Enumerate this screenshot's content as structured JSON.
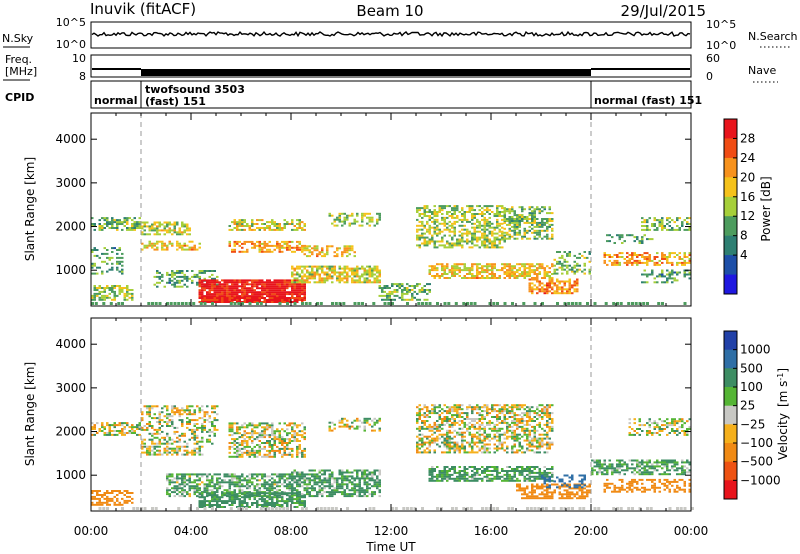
{
  "header": {
    "station": "Inuvik (fitACF)",
    "beam": "Beam 10",
    "date": "29/Jul/2015"
  },
  "strips": {
    "nsky_label": "N.Sky",
    "nsky_ticks": [
      "10^5",
      "10^0"
    ],
    "nsearch_label": "N.Search",
    "nsearch_ticks": [
      "10^5",
      "10^0"
    ],
    "freq_label_line1": "Freq.",
    "freq_label_line2": "[MHz]",
    "freq_ticks": [
      "10",
      "8"
    ],
    "nave_label": "Nave",
    "nave_ticks": [
      "60",
      "0"
    ],
    "cpid_label": "CPID",
    "cpid_segments": [
      {
        "line1": "normal",
        "line2": ""
      },
      {
        "line1": "twofsound 3503",
        "line2": "(fast) 151"
      },
      {
        "line1": "normal (fast) 151",
        "line2": ""
      }
    ]
  },
  "power_colorbar": {
    "label": "Power [dB]",
    "ticks": [
      "28",
      "24",
      "20",
      "16",
      "12",
      "8",
      "4"
    ],
    "colors": [
      "#e8141c",
      "#f04c14",
      "#f7921d",
      "#f5c21b",
      "#a6cf3a",
      "#4d9c5e",
      "#2e7f72",
      "#1d4fa8",
      "#1f18e0"
    ]
  },
  "velocity_colorbar": {
    "label_main": "Velocity",
    "label_unit": "[m s",
    "label_sup": "-1",
    "label_close": "]",
    "ticks": [
      "1000",
      "500",
      "100",
      "25",
      "−25",
      "−100",
      "−500",
      "−1000"
    ],
    "colors": [
      "#2241a8",
      "#2f6fa6",
      "#3d8d63",
      "#55b535",
      "#c8c8c4",
      "#f5b01c",
      "#f08a14",
      "#ee5212",
      "#e8141c"
    ]
  },
  "chart_data": [
    {
      "type": "heatmap",
      "title": "",
      "quantity": "Power",
      "xlabel": "",
      "ylabel": "Slant Range [km]",
      "x_ticks": [
        "00:00",
        "04:00",
        "08:00",
        "12:00",
        "16:00",
        "20:00",
        "00:00"
      ],
      "y_ticks": [
        "4000",
        "3000",
        "2000",
        "1000"
      ],
      "xlim_hours": [
        0,
        24
      ],
      "ylim_km": [
        180,
        4600
      ],
      "clim_db": [
        0,
        32
      ],
      "mode_boundaries_hours": [
        2.0,
        20.0
      ],
      "bands": [
        {
          "t0": 0.0,
          "t1": 2.0,
          "r0": 1900,
          "r1": 2200,
          "level_db": 14,
          "density": 0.55
        },
        {
          "t0": 0.0,
          "t1": 1.3,
          "r0": 900,
          "r1": 1500,
          "level_db": 12,
          "density": 0.35
        },
        {
          "t0": 0.0,
          "t1": 1.7,
          "r0": 300,
          "r1": 650,
          "level_db": 16,
          "density": 0.6
        },
        {
          "t0": 2.0,
          "t1": 4.0,
          "r0": 1800,
          "r1": 2100,
          "level_db": 17,
          "density": 0.6
        },
        {
          "t0": 2.0,
          "t1": 4.5,
          "r0": 1450,
          "r1": 1650,
          "level_db": 20,
          "density": 0.5
        },
        {
          "t0": 2.5,
          "t1": 5.0,
          "r0": 600,
          "r1": 1000,
          "level_db": 12,
          "density": 0.4
        },
        {
          "t0": 4.3,
          "t1": 8.5,
          "r0": 250,
          "r1": 750,
          "level_db": 30,
          "density": 0.92
        },
        {
          "t0": 5.5,
          "t1": 8.5,
          "r0": 1400,
          "r1": 1650,
          "level_db": 22,
          "density": 0.55
        },
        {
          "t0": 5.5,
          "t1": 8.5,
          "r0": 1900,
          "r1": 2150,
          "level_db": 18,
          "density": 0.55
        },
        {
          "t0": 8.0,
          "t1": 11.5,
          "r0": 700,
          "r1": 1100,
          "level_db": 18,
          "density": 0.7
        },
        {
          "t0": 8.5,
          "t1": 10.5,
          "r0": 1300,
          "r1": 1550,
          "level_db": 21,
          "density": 0.55
        },
        {
          "t0": 9.5,
          "t1": 11.5,
          "r0": 2000,
          "r1": 2300,
          "level_db": 15,
          "density": 0.4
        },
        {
          "t0": 11.5,
          "t1": 13.5,
          "r0": 300,
          "r1": 700,
          "level_db": 14,
          "density": 0.5
        },
        {
          "t0": 13.0,
          "t1": 16.5,
          "r0": 1500,
          "r1": 2450,
          "level_db": 16,
          "density": 0.55
        },
        {
          "t0": 13.5,
          "t1": 18.5,
          "r0": 800,
          "r1": 1150,
          "level_db": 20,
          "density": 0.65
        },
        {
          "t0": 16.5,
          "t1": 18.5,
          "r0": 1700,
          "r1": 2450,
          "level_db": 15,
          "density": 0.55
        },
        {
          "t0": 17.5,
          "t1": 19.5,
          "r0": 450,
          "r1": 800,
          "level_db": 24,
          "density": 0.6
        },
        {
          "t0": 18.5,
          "t1": 20.0,
          "r0": 900,
          "r1": 1400,
          "level_db": 14,
          "density": 0.45
        },
        {
          "t0": 20.5,
          "t1": 24.0,
          "r0": 1100,
          "r1": 1400,
          "level_db": 22,
          "density": 0.55
        },
        {
          "t0": 20.5,
          "t1": 22.5,
          "r0": 1600,
          "r1": 1800,
          "level_db": 12,
          "density": 0.4
        },
        {
          "t0": 22.0,
          "t1": 24.0,
          "r0": 1900,
          "r1": 2200,
          "level_db": 14,
          "density": 0.5
        },
        {
          "t0": 22.0,
          "t1": 24.0,
          "r0": 700,
          "r1": 1000,
          "level_db": 12,
          "density": 0.4
        }
      ]
    },
    {
      "type": "heatmap",
      "title": "",
      "quantity": "Velocity",
      "xlabel": "Time UT",
      "ylabel": "Slant Range [km]",
      "x_ticks": [
        "00:00",
        "04:00",
        "08:00",
        "12:00",
        "16:00",
        "20:00",
        "00:00"
      ],
      "y_ticks": [
        "4000",
        "3000",
        "2000",
        "1000"
      ],
      "xlim_hours": [
        0,
        24
      ],
      "ylim_km": [
        180,
        4600
      ],
      "clim_ms": [
        -1000,
        1000
      ],
      "mode_boundaries_hours": [
        2.0,
        20.0
      ],
      "bands": [
        {
          "t0": 0.0,
          "t1": 2.0,
          "r0": 1900,
          "r1": 2200,
          "level_ms": 0,
          "density": 0.55
        },
        {
          "t0": 0.0,
          "t1": 1.7,
          "r0": 300,
          "r1": 650,
          "level_ms": -300,
          "density": 0.6
        },
        {
          "t0": 2.0,
          "t1": 5.0,
          "r0": 1700,
          "r1": 2600,
          "level_ms": 0,
          "density": 0.45
        },
        {
          "t0": 2.0,
          "t1": 4.5,
          "r0": 1450,
          "r1": 1650,
          "level_ms": 0,
          "density": 0.5
        },
        {
          "t0": 3.0,
          "t1": 8.0,
          "r0": 500,
          "r1": 1000,
          "level_ms": 120,
          "density": 0.65
        },
        {
          "t0": 4.3,
          "t1": 8.5,
          "r0": 250,
          "r1": 600,
          "level_ms": 200,
          "density": 0.7
        },
        {
          "t0": 5.5,
          "t1": 8.5,
          "r0": 1400,
          "r1": 2200,
          "level_ms": 0,
          "density": 0.55
        },
        {
          "t0": 8.0,
          "t1": 11.5,
          "r0": 500,
          "r1": 1100,
          "level_ms": 150,
          "density": 0.65
        },
        {
          "t0": 9.5,
          "t1": 11.5,
          "r0": 2000,
          "r1": 2300,
          "level_ms": 0,
          "density": 0.4
        },
        {
          "t0": 13.0,
          "t1": 18.5,
          "r0": 1500,
          "r1": 2600,
          "level_ms": 0,
          "density": 0.55
        },
        {
          "t0": 13.5,
          "t1": 18.5,
          "r0": 850,
          "r1": 1200,
          "level_ms": 150,
          "density": 0.65
        },
        {
          "t0": 17.0,
          "t1": 20.0,
          "r0": 450,
          "r1": 800,
          "level_ms": -300,
          "density": 0.6
        },
        {
          "t0": 18.0,
          "t1": 19.8,
          "r0": 700,
          "r1": 1000,
          "level_ms": 700,
          "density": 0.35
        },
        {
          "t0": 20.0,
          "t1": 24.0,
          "r0": 1000,
          "r1": 1350,
          "level_ms": 150,
          "density": 0.6
        },
        {
          "t0": 20.5,
          "t1": 24.0,
          "r0": 600,
          "r1": 900,
          "level_ms": -300,
          "density": 0.45
        },
        {
          "t0": 21.5,
          "t1": 24.0,
          "r0": 1900,
          "r1": 2300,
          "level_ms": 0,
          "density": 0.5
        }
      ]
    }
  ]
}
